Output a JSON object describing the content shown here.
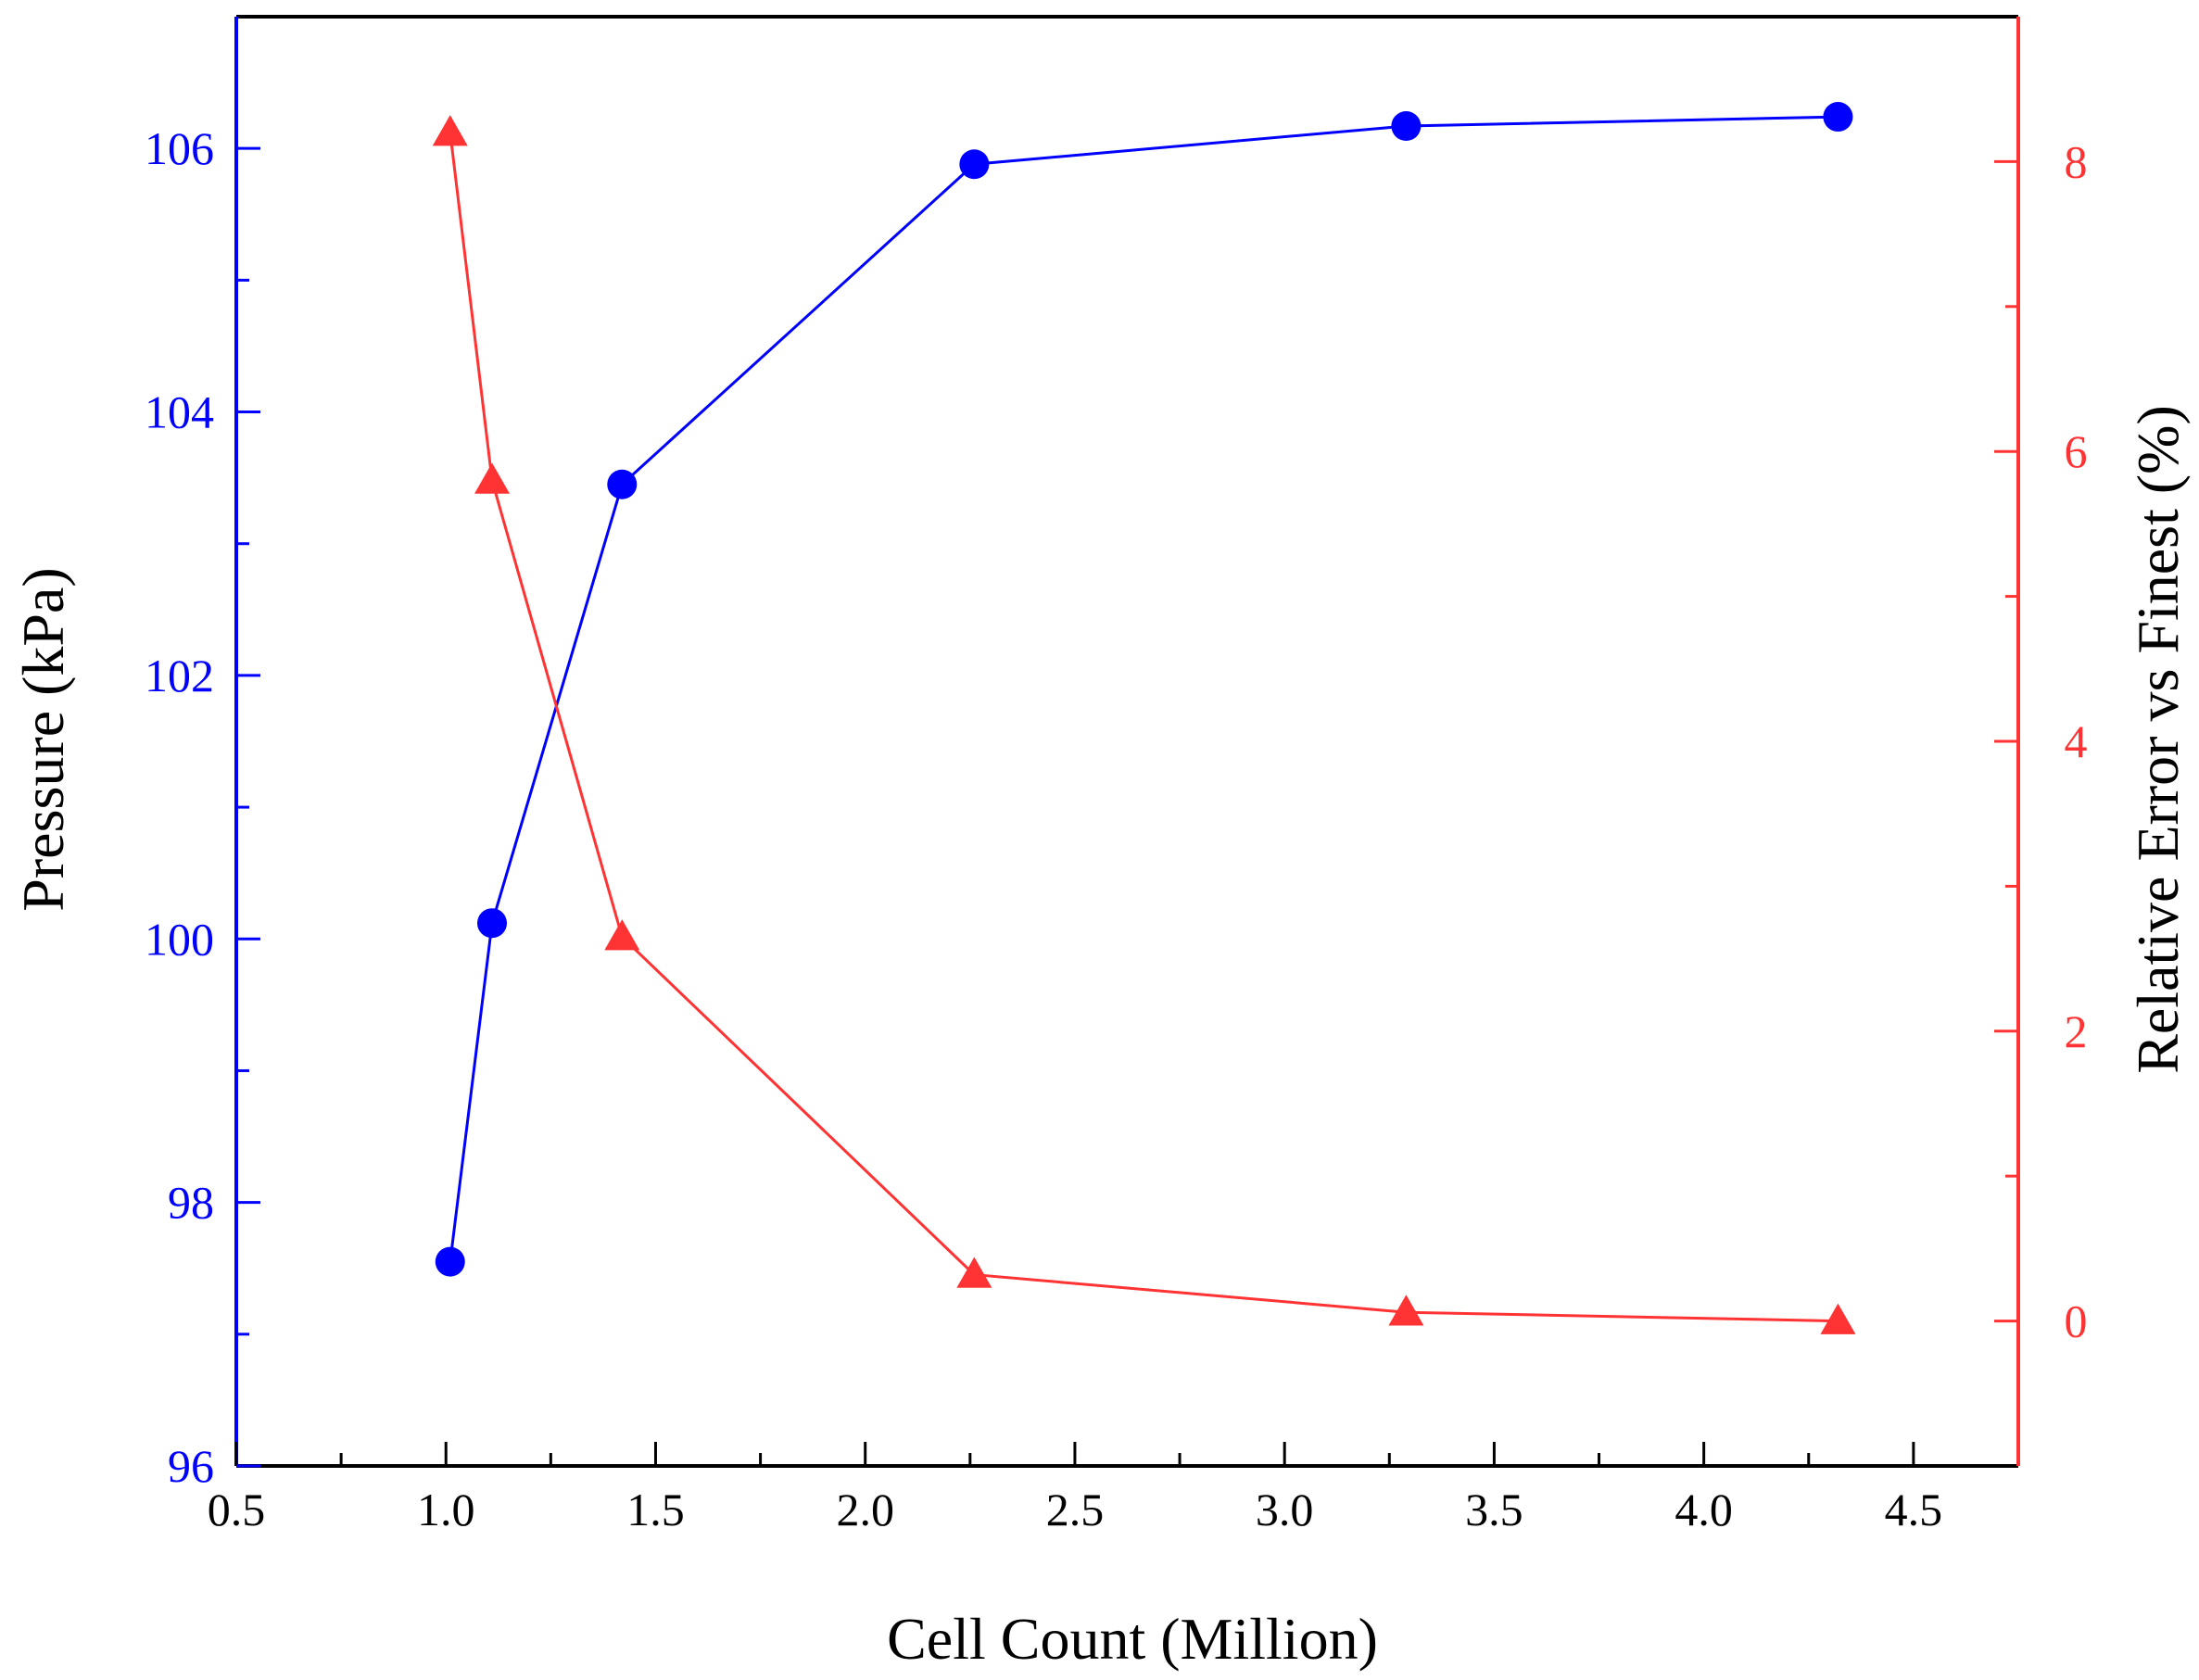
{
  "chart_data": {
    "type": "line",
    "xlabel": "Cell Count (Million)",
    "ylabel_left": "Pressure (kPa)",
    "ylabel_right": "Relative Error vs Finest (%)",
    "xlim": [
      0.5,
      4.75
    ],
    "x_ticks": [
      "0.5",
      "1.0",
      "1.5",
      "2.0",
      "2.5",
      "3.0",
      "3.5",
      "4.0",
      "4.5"
    ],
    "x_tick_values": [
      0.5,
      1.0,
      1.5,
      2.0,
      2.5,
      3.0,
      3.5,
      4.0,
      4.5
    ],
    "ylim_left": [
      96,
      107
    ],
    "y_left_ticks": [
      "96",
      "98",
      "100",
      "102",
      "104",
      "106"
    ],
    "y_left_tick_values": [
      96,
      98,
      100,
      102,
      104,
      106
    ],
    "ylim_right": [
      -1,
      9
    ],
    "y_right_ticks": [
      "0",
      "2",
      "4",
      "6",
      "8"
    ],
    "y_right_tick_values": [
      0,
      2,
      4,
      6,
      8
    ],
    "series": [
      {
        "name": "Pressure",
        "axis": "left",
        "marker": "circle",
        "color": "#0000ff",
        "x": [
          1.01,
          1.11,
          1.42,
          2.26,
          3.29,
          4.32
        ],
        "values": [
          97.55,
          100.12,
          103.45,
          105.88,
          106.17,
          106.24
        ]
      },
      {
        "name": "Relative Error",
        "axis": "right",
        "marker": "triangle",
        "color": "#ff3333",
        "x": [
          1.01,
          1.11,
          1.42,
          2.26,
          3.29,
          4.32
        ],
        "values": [
          8.2,
          5.8,
          2.65,
          0.32,
          0.06,
          0.0
        ]
      }
    ],
    "colors": {
      "left_axis": "#0000ff",
      "right_axis": "#ff3333",
      "frame": "#000000"
    }
  }
}
